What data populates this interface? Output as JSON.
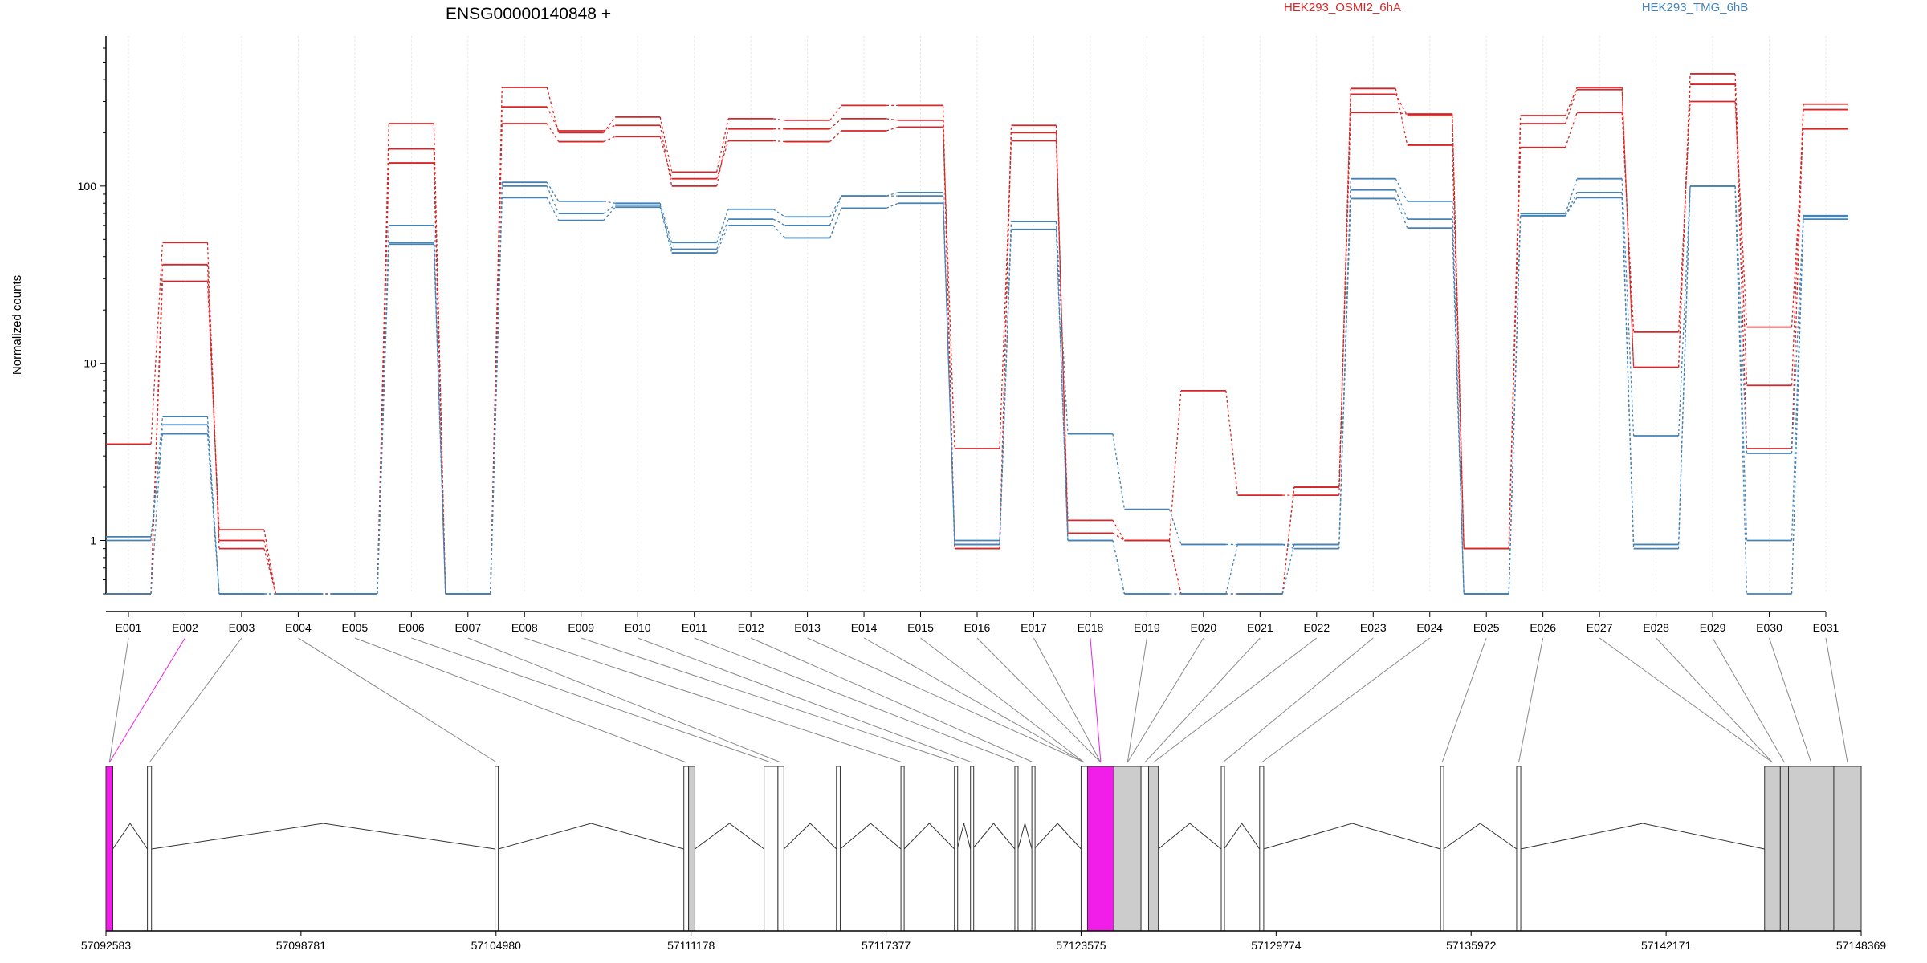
{
  "chart_data": {
    "type": "line",
    "title": "ENSG00000140848 +",
    "ylabel": "Normalized counts",
    "yscale": "log",
    "ylim": [
      0.5,
      600
    ],
    "yticks": [
      1,
      10,
      100
    ],
    "ytick_labels": [
      "1",
      "10",
      "100"
    ],
    "grid": "vertical dotted",
    "legend_placement": "top-right",
    "legend": [
      "HEK293_OSMI2_6hA",
      "HEK293_TMG_6hB"
    ],
    "colors": {
      "HEK293_OSMI2_6hA": "#d62728",
      "HEK293_TMG_6hB": "#4682b4",
      "highlight": "#f01ee8",
      "exon_fill": "#cccccc"
    },
    "categories": [
      "E001",
      "E002",
      "E003",
      "E004",
      "E005",
      "E006",
      "E007",
      "E008",
      "E009",
      "E010",
      "E011",
      "E012",
      "E013",
      "E014",
      "E015",
      "E016",
      "E017",
      "E018",
      "E019",
      "E020",
      "E021",
      "E022",
      "E023",
      "E024",
      "E025",
      "E026",
      "E027",
      "E028",
      "E029",
      "E030",
      "E031"
    ],
    "series": [
      {
        "name": "HEK293_OSMI2_6hA",
        "color": "#d62728",
        "values": [
          3.5,
          48,
          0.9,
          0.5,
          0.5,
          225,
          0.5,
          360,
          200,
          245,
          120,
          240,
          235,
          285,
          285,
          0.9,
          220,
          1.1,
          1.0,
          7,
          1.8,
          1.8,
          355,
          170,
          0.9,
          250,
          360,
          9.5,
          430,
          7.5,
          290
        ]
      },
      {
        "name": "HEK293_OSMI2_6hA",
        "color": "#d62728",
        "values": [
          0.5,
          36,
          1.0,
          0.5,
          0.5,
          162,
          0.5,
          280,
          205,
          220,
          100,
          210,
          210,
          240,
          235,
          0.9,
          200,
          1.1,
          1.0,
          0.5,
          0.5,
          2.0,
          330,
          250,
          0.9,
          225,
          350,
          9.5,
          375,
          3.3,
          270
        ]
      },
      {
        "name": "HEK293_OSMI2_6hA",
        "color": "#d62728",
        "values": [
          0.5,
          29,
          1.15,
          0.5,
          0.5,
          135,
          0.5,
          225,
          178,
          190,
          110,
          180,
          178,
          205,
          215,
          3.3,
          180,
          1.3,
          1.0,
          0.5,
          0.5,
          2.0,
          260,
          255,
          0.9,
          165,
          260,
          15,
          300,
          16,
          210
        ]
      },
      {
        "name": "HEK293_TMG_6hB",
        "color": "#4682b4",
        "values": [
          1.0,
          5,
          0.5,
          0.5,
          0.5,
          60,
          0.5,
          105,
          82,
          80,
          48,
          74,
          67,
          88,
          92,
          0.95,
          63,
          4,
          1.5,
          0.95,
          0.95,
          0.95,
          110,
          82,
          0.5,
          70,
          110,
          3.9,
          100,
          3.1,
          68
        ]
      },
      {
        "name": "HEK293_TMG_6hB",
        "color": "#4682b4",
        "values": [
          0.5,
          4.5,
          0.5,
          0.5,
          0.5,
          48,
          0.5,
          100,
          70,
          78,
          44,
          65,
          60,
          88,
          88,
          0.95,
          63,
          1.0,
          0.5,
          0.5,
          0.95,
          0.9,
          95,
          65,
          0.5,
          68,
          92,
          0.95,
          100,
          0.5,
          67
        ]
      },
      {
        "name": "HEK293_TMG_6hB",
        "color": "#4682b4",
        "values": [
          1.05,
          4,
          0.5,
          0.5,
          0.5,
          47,
          0.5,
          86,
          64,
          76,
          42,
          60,
          51,
          75,
          80,
          1.0,
          57,
          1.0,
          0.5,
          0.5,
          0.5,
          0.95,
          85,
          58,
          0.5,
          68,
          86,
          0.9,
          100,
          1.0,
          65
        ]
      }
    ],
    "highlighted_exons": [
      "E002",
      "E018"
    ],
    "gene_model": {
      "coordinates": [
        57092583,
        57098781,
        57104980,
        57111178,
        57117377,
        57123575,
        57129774,
        57135972,
        57142171,
        57148369
      ],
      "coordinate_labels": [
        "57092583",
        "57098781",
        "57104980",
        "57111178",
        "57117377",
        "57123575",
        "57129774",
        "57135972",
        "57142171",
        "57148369"
      ],
      "exons": [
        {
          "start": 57092583,
          "end": 57092800,
          "fill": "#f01ee8"
        },
        {
          "start": 57093900,
          "end": 57094030,
          "fill": "#ffffff"
        },
        {
          "start": 57104950,
          "end": 57105050,
          "fill": "#ffffff"
        },
        {
          "start": 57110950,
          "end": 57111100,
          "fill": "#ffffff"
        },
        {
          "start": 57111100,
          "end": 57111300,
          "fill": "#cccccc"
        },
        {
          "start": 57113500,
          "end": 57113940,
          "fill": "#ffffff"
        },
        {
          "start": 57113940,
          "end": 57114130,
          "fill": "#ffffff"
        },
        {
          "start": 57115800,
          "end": 57115920,
          "fill": "#ffffff"
        },
        {
          "start": 57117850,
          "end": 57117950,
          "fill": "#ffffff"
        },
        {
          "start": 57119550,
          "end": 57119640,
          "fill": "#ffffff"
        },
        {
          "start": 57120060,
          "end": 57120120,
          "fill": "#ffffff"
        },
        {
          "start": 57121470,
          "end": 57121570,
          "fill": "#ffffff"
        },
        {
          "start": 57122010,
          "end": 57122080,
          "fill": "#ffffff"
        },
        {
          "start": 57123575,
          "end": 57123780,
          "fill": "#ffffff"
        },
        {
          "start": 57123780,
          "end": 57124620,
          "fill": "#f01ee8"
        },
        {
          "start": 57124620,
          "end": 57125480,
          "fill": "#cccccc"
        },
        {
          "start": 57125480,
          "end": 57125720,
          "fill": "#ffffff"
        },
        {
          "start": 57125720,
          "end": 57126030,
          "fill": "#cccccc"
        },
        {
          "start": 57128030,
          "end": 57128120,
          "fill": "#ffffff"
        },
        {
          "start": 57129250,
          "end": 57129380,
          "fill": "#ffffff"
        },
        {
          "start": 57135000,
          "end": 57135100,
          "fill": "#ffffff"
        },
        {
          "start": 57137420,
          "end": 57137550,
          "fill": "#ffffff"
        },
        {
          "start": 57145300,
          "end": 57145800,
          "fill": "#cccccc"
        },
        {
          "start": 57145800,
          "end": 57146060,
          "fill": "#cccccc"
        },
        {
          "start": 57146060,
          "end": 57147500,
          "fill": "#cccccc"
        },
        {
          "start": 57147500,
          "end": 57148369,
          "fill": "#cccccc"
        }
      ]
    }
  }
}
